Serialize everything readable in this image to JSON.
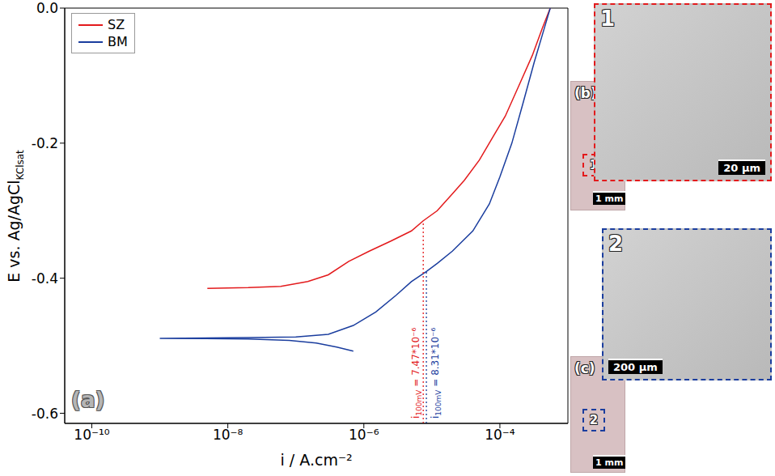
{
  "chart_data": {
    "type": "line",
    "log": "x",
    "legend": "upper left",
    "panel": "(a)",
    "x_label": "i / A.cm⁻²",
    "y_label": {
      "text": "E vs. Ag/AgCl",
      "subscript": "KClsat"
    },
    "xlim": [
      4e-11,
      0.001
    ],
    "ylim": [
      -0.615,
      0
    ],
    "xticks": [
      {
        "value": 1e-10,
        "label": "10⁻¹⁰"
      },
      {
        "value": 1e-08,
        "label": "10⁻⁸"
      },
      {
        "value": 1e-06,
        "label": "10⁻⁶"
      },
      {
        "value": 0.0001,
        "label": "10⁻⁴"
      }
    ],
    "yticks": [
      {
        "value": 0,
        "label": "0.0"
      },
      -0.2,
      -0.4,
      -0.6
    ],
    "series": [
      {
        "name": "SZ",
        "color": "#e31a1c",
        "x": [
          5e-09,
          2e-08,
          6e-08,
          1.5e-07,
          3e-07,
          6e-07,
          1.2e-06,
          2.5e-06,
          5e-06,
          7.47e-06,
          1.2e-05,
          2e-05,
          3e-05,
          5e-05,
          8e-05,
          0.00012,
          0.0002,
          0.0003,
          0.00042,
          0.00055
        ],
        "values": [
          -0.415,
          -0.414,
          -0.412,
          -0.405,
          -0.395,
          -0.375,
          -0.36,
          -0.345,
          -0.33,
          -0.315,
          -0.3,
          -0.275,
          -0.255,
          -0.225,
          -0.19,
          -0.16,
          -0.11,
          -0.07,
          -0.03,
          0.0
        ]
      },
      {
        "name": "BM",
        "color": "#1a3d9e",
        "x": [
          7e-07,
          4e-07,
          2e-07,
          8e-08,
          2e-08,
          1e-09,
          2e-08,
          1e-07,
          3e-07,
          7e-07,
          1.5e-06,
          3e-06,
          5e-06,
          8.31e-06,
          1.2e-05,
          2e-05,
          4e-05,
          7e-05,
          0.0001,
          0.00015,
          0.00022,
          0.00032,
          0.00042,
          0.00055
        ],
        "values": [
          -0.508,
          -0.502,
          -0.496,
          -0.492,
          -0.49,
          -0.489,
          -0.488,
          -0.487,
          -0.483,
          -0.47,
          -0.45,
          -0.425,
          -0.405,
          -0.39,
          -0.378,
          -0.36,
          -0.33,
          -0.29,
          -0.25,
          -0.2,
          -0.14,
          -0.08,
          -0.04,
          0.0
        ]
      }
    ],
    "annotations": [
      {
        "text": "i",
        "subscript": "100mV",
        "rest": "= 7.47*10⁻⁶",
        "x": 7.47e-06,
        "y": -0.315,
        "color": "#e31a1c"
      },
      {
        "text": "i",
        "subscript": "100mV",
        "rest": "= 8.31*10⁻⁶",
        "x": 8.31e-06,
        "y": -0.39,
        "color": "#1a3d9e"
      }
    ]
  },
  "micrographs": [
    {
      "panel": "(b)",
      "scale_bar": "1 mm",
      "box": "1",
      "box_color": "#e31a1c",
      "inset": {
        "label": "1",
        "scale_bar": "20 µm"
      }
    },
    {
      "panel": "(c)",
      "scale_bar": "1 mm",
      "box": "2",
      "box_color": "#1a3d9e",
      "inset": {
        "label": "2",
        "scale_bar": "200 µm"
      }
    }
  ]
}
